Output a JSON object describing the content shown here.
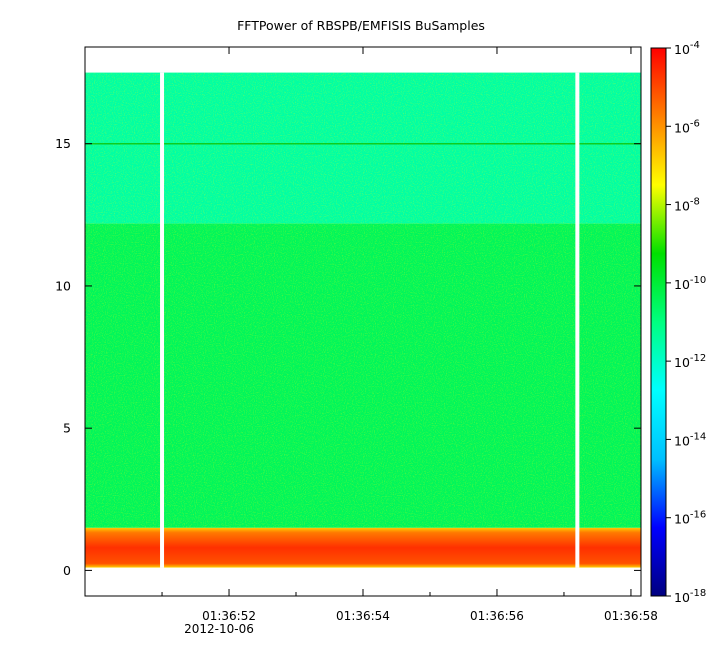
{
  "chart_data": {
    "type": "heatmap",
    "title": "FFTPower of RBSPB/EMFISIS  BuSamples",
    "xlabel": "",
    "ylabel": "",
    "x_date_label": "2012-10-06",
    "xlim": [
      49.85,
      58.15
    ],
    "ylim": [
      -0.9,
      18.4
    ],
    "x_ticks": [
      {
        "value": 52,
        "label": "01:36:52"
      },
      {
        "value": 54,
        "label": "01:36:54"
      },
      {
        "value": 56,
        "label": "01:36:56"
      },
      {
        "value": 58,
        "label": "01:36:58"
      }
    ],
    "x_minor_ticks": [
      51,
      53,
      55,
      57
    ],
    "y_ticks": [
      {
        "value": 0,
        "label": "0"
      },
      {
        "value": 5,
        "label": "5"
      },
      {
        "value": 10,
        "label": "10"
      },
      {
        "value": 15,
        "label": "15"
      }
    ],
    "data_extent": {
      "y_min": 0.1,
      "y_max": 17.5
    },
    "data_gaps_x": [
      51.0,
      57.2
    ],
    "power_bands": [
      {
        "y_from": 0.1,
        "y_to": 1.5,
        "log10_power": -6.5
      },
      {
        "y_from": 1.5,
        "y_to": 12.2,
        "log10_power": -10.5
      },
      {
        "y_from": 12.2,
        "y_to": 17.5,
        "log10_power": -11.5
      }
    ],
    "line_at_y": 15.0,
    "colorbar": {
      "scale": "log",
      "range_log10": [
        -18,
        -4
      ],
      "tick_exponents": [
        -4,
        -6,
        -8,
        -10,
        -12,
        -14,
        -16,
        -18
      ],
      "tick_base": "10",
      "colormap": [
        "#00007f",
        "#0000ff",
        "#00c0ff",
        "#00ffff",
        "#00ff80",
        "#00e000",
        "#ffff00",
        "#ff8000",
        "#ff0000"
      ]
    }
  }
}
